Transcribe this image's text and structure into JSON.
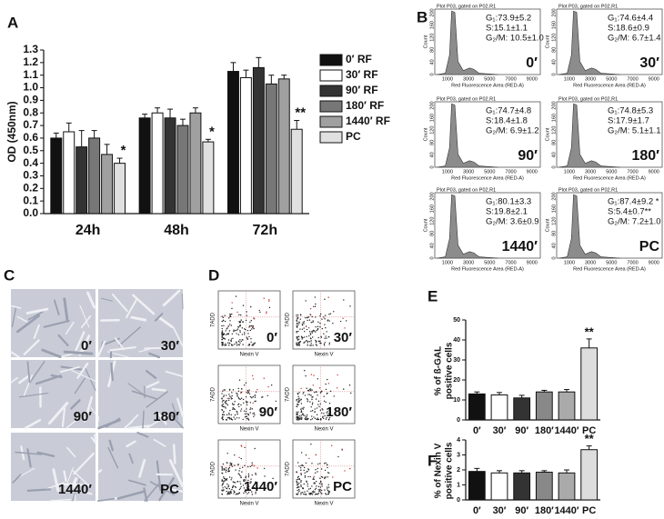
{
  "chart_data": [
    {
      "type": "grouped_bar",
      "panel": "A",
      "ylabel": "OD (450nm)",
      "categories": [
        "24h",
        "48h",
        "72h"
      ],
      "series": [
        {
          "name": "0′ RF",
          "color": "#111111",
          "values": [
            0.6,
            0.76,
            1.13
          ],
          "errors": [
            0.04,
            0.03,
            0.07
          ]
        },
        {
          "name": "30′ RF",
          "color": "#ffffff",
          "values": [
            0.65,
            0.8,
            1.08
          ],
          "errors": [
            0.07,
            0.04,
            0.06
          ]
        },
        {
          "name": "90′ RF",
          "color": "#333333",
          "values": [
            0.53,
            0.76,
            1.16
          ],
          "errors": [
            0.13,
            0.07,
            0.08
          ]
        },
        {
          "name": "180′ RF",
          "color": "#777777",
          "values": [
            0.6,
            0.7,
            1.03
          ],
          "errors": [
            0.06,
            0.05,
            0.07
          ]
        },
        {
          "name": "1440′ RF",
          "color": "#a0a0a0",
          "values": [
            0.47,
            0.8,
            1.07
          ],
          "errors": [
            0.08,
            0.04,
            0.03
          ]
        },
        {
          "name": "PC",
          "color": "#e0e0e0",
          "values": [
            0.4,
            0.57,
            0.67
          ],
          "errors": [
            0.04,
            0.02,
            0.07
          ]
        }
      ],
      "annotations": [
        "*",
        "*",
        "**"
      ],
      "ylim": [
        0,
        1.3
      ],
      "yticks": [
        {
          "value": 0,
          "label": "0.0"
        },
        {
          "value": 0.1,
          "label": "0.1"
        },
        {
          "value": 0.2,
          "label": "0.2"
        },
        {
          "value": 0.3,
          "label": "0.3"
        },
        {
          "value": 0.4,
          "label": "0.4"
        },
        {
          "value": 0.5,
          "label": "0.5"
        },
        {
          "value": 0.6,
          "label": "0.6"
        },
        {
          "value": 0.7,
          "label": "0.7"
        },
        {
          "value": 0.8,
          "label": "0.8"
        },
        {
          "value": 0.9,
          "label": "0.9"
        },
        {
          "value": 1.0,
          "label": "1.0"
        },
        {
          "value": 1.1,
          "label": "1.1"
        },
        {
          "value": 1.2,
          "label": "1.2"
        },
        {
          "value": 1.3,
          "label": "1.3"
        }
      ],
      "legend": "right"
    },
    {
      "type": "bar",
      "panel": "E",
      "ylabel": [
        "% of ß-GAL",
        "positive cells"
      ],
      "categories": [
        "0′",
        "30′",
        "90′",
        "180′",
        "1440′",
        "PC"
      ],
      "values": [
        13,
        12.5,
        11,
        14,
        14,
        36
      ],
      "errors": [
        1,
        1.2,
        1.3,
        0.8,
        1.2,
        4.5
      ],
      "colors": [
        "#111111",
        "#ffffff",
        "#333333",
        "#888888",
        "#aaaaaa",
        "#dddddd"
      ],
      "annotations": [
        null,
        null,
        null,
        null,
        null,
        "**"
      ],
      "ylim": [
        0,
        50
      ],
      "yticks": [
        0,
        10,
        20,
        30,
        40,
        50
      ]
    },
    {
      "type": "bar",
      "panel": "F",
      "ylabel": [
        "% of Nexin V",
        "positive cells"
      ],
      "categories": [
        "0′",
        "30′",
        "90′",
        "180′",
        "1440′",
        "PC"
      ],
      "values": [
        1.9,
        1.8,
        1.8,
        1.85,
        1.8,
        3.35
      ],
      "errors": [
        0.2,
        0.15,
        0.15,
        0.1,
        0.2,
        0.25
      ],
      "colors": [
        "#111111",
        "#ffffff",
        "#333333",
        "#888888",
        "#aaaaaa",
        "#dddddd"
      ],
      "annotations": [
        null,
        null,
        null,
        null,
        null,
        "**"
      ],
      "ylim": [
        0,
        4
      ],
      "yticks": [
        0,
        1,
        2,
        3,
        4
      ]
    }
  ],
  "panel_b": {
    "letter": "B",
    "title": "Plot P03, gated on P02.R1",
    "ylabel": "Count",
    "xlabel": "Red Fluorescence Area (RED-A)",
    "xticks": [
      "1000",
      "3000",
      "5000",
      "7000",
      "9000"
    ],
    "yticks": [
      "0",
      "40",
      "80",
      "120",
      "160",
      "200"
    ],
    "plots": [
      {
        "label": "0′",
        "stats": [
          "G₁:73.9±5.2",
          "S:15.1±1.1",
          "G₂/M: 10.5±1.0"
        ]
      },
      {
        "label": "30′",
        "stats": [
          "G₁:74.6±4.4",
          "S:18.6±0.9",
          "G₂/M: 6.7±1.4"
        ]
      },
      {
        "label": "90′",
        "stats": [
          "G₁:74.7±4.8",
          "S:18.4±1.8",
          "G₂/M: 6.9±1.2"
        ]
      },
      {
        "label": "180′",
        "stats": [
          "G₁:74.8±5.3",
          "S:17.9±1.7",
          "G₂/M: 5.1±1.1"
        ]
      },
      {
        "label": "1440′",
        "stats": [
          "G₁:80.1±3.3",
          "S:19.8±2.1",
          "G₂/M: 3.6±0.9"
        ]
      },
      {
        "label": "PC",
        "stats": [
          "G₁:87.4±9.2 *",
          "S:5.4±0.7**",
          "G₂/M: 7.2±1.0"
        ]
      }
    ]
  },
  "panel_c": {
    "letter": "C",
    "labels": [
      "0′",
      "30′",
      "90′",
      "180′",
      "1440′",
      "PC"
    ]
  },
  "panel_d": {
    "letter": "D",
    "ylabel": "7ADD",
    "xlabel": "Nexin V",
    "labels": [
      "0′",
      "30′",
      "90′",
      "180′",
      "1440′",
      "PC"
    ]
  }
}
